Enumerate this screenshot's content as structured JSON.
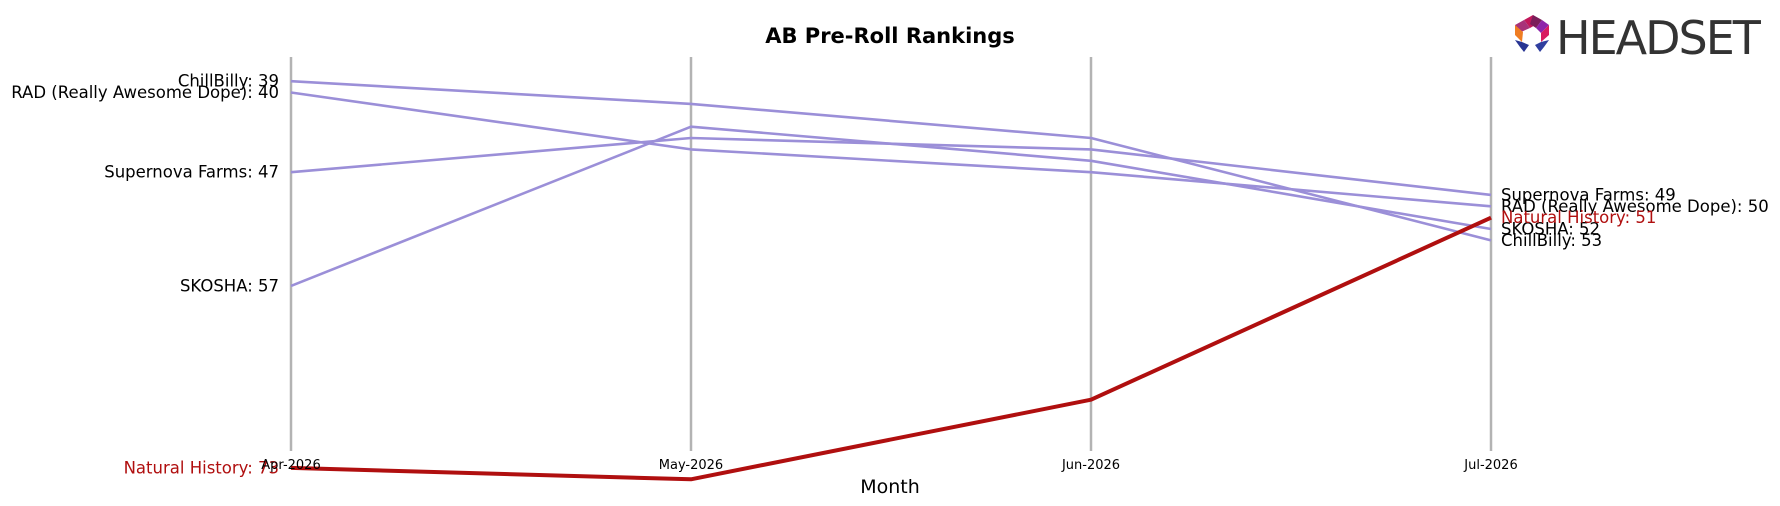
{
  "chart_data": {
    "type": "line",
    "title": "AB Pre-Roll Rankings",
    "xlabel": "Month",
    "ylabel": "",
    "x": [
      "Apr-2026",
      "May-2026",
      "Jun-2026",
      "Jul-2026"
    ],
    "y_inverted": true,
    "ylim": [
      78,
      34
    ],
    "grid": "vertical lines at each month",
    "series": [
      {
        "name": "ChillBilly",
        "values": [
          39,
          41,
          44,
          53
        ],
        "color": "#9b8fd8",
        "start_label": "ChillBilly: 39",
        "end_label": "ChillBilly: 53"
      },
      {
        "name": "RAD (Really Awesome Dope)",
        "values": [
          40,
          45,
          47,
          50
        ],
        "color": "#9b8fd8",
        "start_label": "RAD (Really Awesome Dope): 40",
        "end_label": "RAD (Really Awesome Dope): 50"
      },
      {
        "name": "Supernova Farms",
        "values": [
          47,
          44,
          45,
          49
        ],
        "color": "#9b8fd8",
        "start_label": "Supernova Farms: 47",
        "end_label": "Supernova Farms: 49"
      },
      {
        "name": "SKOSHA",
        "values": [
          57,
          43,
          46,
          52
        ],
        "color": "#9b8fd8",
        "start_label": "SKOSHA: 57",
        "end_label": "SKOSHA: 52"
      },
      {
        "name": "Natural History",
        "values": [
          73,
          74,
          67,
          51
        ],
        "color": "#b00f0f",
        "highlight": true,
        "start_label": "Natural History: 73",
        "end_label": "Natural History: 51"
      }
    ]
  },
  "logo": {
    "text": "HEADSET"
  }
}
